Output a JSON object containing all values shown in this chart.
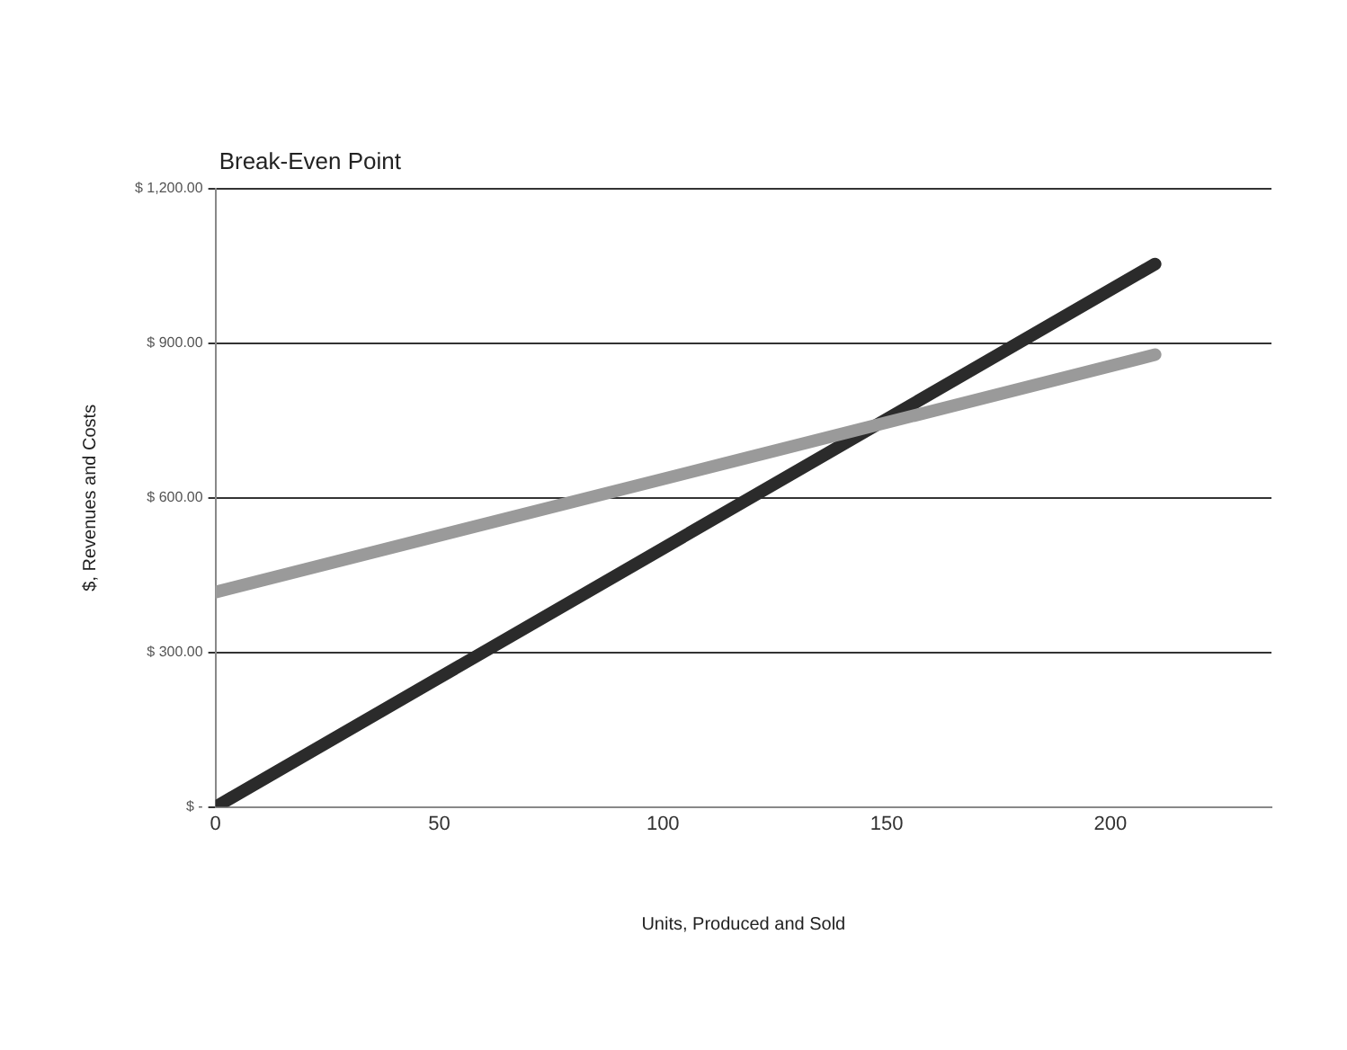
{
  "chart_data": {
    "type": "line",
    "title": "Break-Even Point",
    "xlabel": "Units, Produced and Sold",
    "ylabel": "$, Revenues and Costs",
    "x": [
      0,
      210
    ],
    "series": [
      {
        "color": "#9a9a9a",
        "values": [
          417,
          878
        ]
      },
      {
        "color": "#2b2b2b",
        "values": [
          0,
          1054
        ]
      }
    ],
    "xlim": [
      0,
      236
    ],
    "xticks": [
      0,
      50,
      100,
      150,
      200
    ],
    "ylim": [
      0,
      1200
    ],
    "yticks": [
      {
        "value": 0,
        "label": "$ -"
      },
      {
        "value": 300,
        "label": "$ 300.00"
      },
      {
        "value": 600,
        "label": "$ 600.00"
      },
      {
        "value": 900,
        "label": "$ 900.00"
      },
      {
        "value": 1200,
        "label": "$ 1,200.00"
      }
    ],
    "grid": "y",
    "legend": false,
    "marker": "none",
    "line_style": "solid"
  }
}
